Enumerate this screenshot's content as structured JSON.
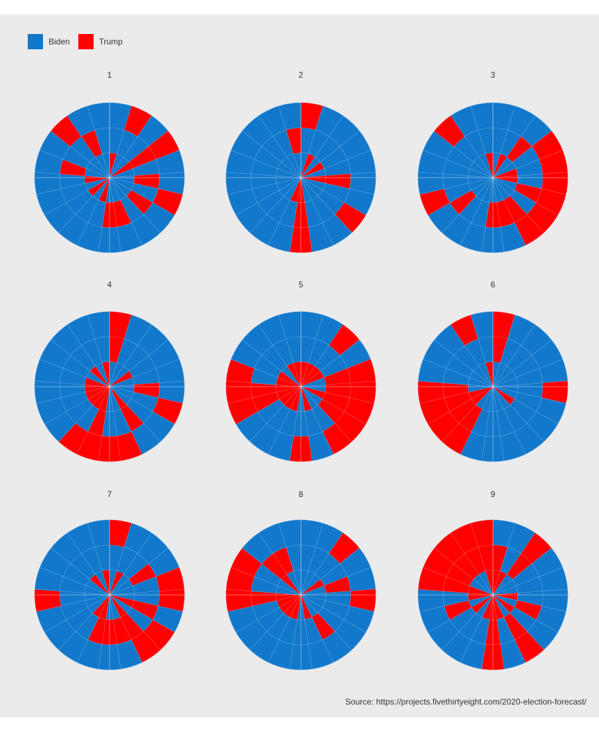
{
  "legend": {
    "items": [
      {
        "label": "Biden",
        "color": "#1178cb"
      },
      {
        "label": "Trump",
        "color": "#fe0000"
      }
    ]
  },
  "source": "Source: https://projects.fivethirtyeight.com/2020-election-forecast/",
  "chart_data": {
    "type": "polar-bar",
    "rings": 3,
    "sectors": 21,
    "grid": true,
    "legend_position": "top-left",
    "colors": {
      "Biden": "#1178cb",
      "Trump": "#fe0000"
    },
    "facets": [
      {
        "label": "1",
        "trump_cells": [
          [
            0,
            0
          ],
          [
            1,
            2
          ],
          [
            3,
            0
          ],
          [
            3,
            1
          ],
          [
            3,
            2
          ],
          [
            5,
            1
          ],
          [
            6,
            2
          ],
          [
            7,
            1
          ],
          [
            9,
            1
          ],
          [
            10,
            1
          ],
          [
            11,
            0
          ],
          [
            13,
            0
          ],
          [
            15,
            0
          ],
          [
            16,
            1
          ],
          [
            18,
            2
          ],
          [
            19,
            1
          ]
        ]
      },
      {
        "label": "2",
        "trump_cells": [
          [
            0,
            2
          ],
          [
            1,
            0
          ],
          [
            3,
            0
          ],
          [
            5,
            0
          ],
          [
            5,
            1
          ],
          [
            7,
            2
          ],
          [
            10,
            0
          ],
          [
            10,
            1
          ],
          [
            10,
            2
          ],
          [
            11,
            0
          ],
          [
            20,
            1
          ]
        ]
      },
      {
        "label": "3",
        "trump_cells": [
          [
            1,
            0
          ],
          [
            2,
            1
          ],
          [
            3,
            2
          ],
          [
            4,
            0
          ],
          [
            4,
            2
          ],
          [
            5,
            0
          ],
          [
            5,
            2
          ],
          [
            6,
            1
          ],
          [
            6,
            2
          ],
          [
            7,
            2
          ],
          [
            8,
            1
          ],
          [
            8,
            2
          ],
          [
            9,
            1
          ],
          [
            10,
            1
          ],
          [
            13,
            1
          ],
          [
            14,
            2
          ],
          [
            18,
            2
          ],
          [
            20,
            0
          ]
        ]
      },
      {
        "label": "4",
        "trump_cells": [
          [
            0,
            2
          ],
          [
            0,
            1
          ],
          [
            3,
            0
          ],
          [
            5,
            1
          ],
          [
            6,
            2
          ],
          [
            8,
            0
          ],
          [
            8,
            1
          ],
          [
            9,
            2
          ],
          [
            10,
            2
          ],
          [
            11,
            0
          ],
          [
            11,
            1
          ],
          [
            11,
            2
          ],
          [
            12,
            0
          ],
          [
            12,
            2
          ],
          [
            13,
            0
          ],
          [
            14,
            0
          ],
          [
            15,
            0
          ],
          [
            16,
            0
          ],
          [
            18,
            0
          ],
          [
            20,
            0
          ]
        ]
      },
      {
        "label": "5",
        "trump_cells": [
          [
            0,
            0
          ],
          [
            1,
            0
          ],
          [
            2,
            0
          ],
          [
            2,
            2
          ],
          [
            3,
            0
          ],
          [
            4,
            1
          ],
          [
            4,
            2
          ],
          [
            5,
            1
          ],
          [
            5,
            2
          ],
          [
            6,
            0
          ],
          [
            6,
            1
          ],
          [
            6,
            2
          ],
          [
            7,
            1
          ],
          [
            7,
            2
          ],
          [
            8,
            2
          ],
          [
            9,
            0
          ],
          [
            10,
            2
          ],
          [
            11,
            0
          ],
          [
            12,
            0
          ],
          [
            13,
            0
          ],
          [
            14,
            0
          ],
          [
            14,
            1
          ],
          [
            14,
            2
          ],
          [
            15,
            0
          ],
          [
            15,
            1
          ],
          [
            15,
            2
          ],
          [
            16,
            0
          ],
          [
            16,
            2
          ],
          [
            17,
            0
          ],
          [
            19,
            0
          ],
          [
            20,
            0
          ]
        ]
      },
      {
        "label": "6",
        "trump_cells": [
          [
            0,
            1
          ],
          [
            0,
            2
          ],
          [
            5,
            2
          ],
          [
            7,
            0
          ],
          [
            12,
            1
          ],
          [
            12,
            2
          ],
          [
            13,
            0
          ],
          [
            13,
            1
          ],
          [
            13,
            2
          ],
          [
            14,
            0
          ],
          [
            14,
            1
          ],
          [
            14,
            2
          ],
          [
            15,
            1
          ],
          [
            15,
            2
          ],
          [
            19,
            2
          ],
          [
            20,
            0
          ]
        ]
      },
      {
        "label": "7",
        "trump_cells": [
          [
            0,
            2
          ],
          [
            1,
            0
          ],
          [
            3,
            1
          ],
          [
            4,
            2
          ],
          [
            5,
            2
          ],
          [
            6,
            0
          ],
          [
            6,
            1
          ],
          [
            7,
            2
          ],
          [
            8,
            0
          ],
          [
            8,
            1
          ],
          [
            8,
            2
          ],
          [
            9,
            1
          ],
          [
            10,
            1
          ],
          [
            11,
            1
          ],
          [
            11,
            0
          ],
          [
            12,
            0
          ],
          [
            15,
            2
          ],
          [
            18,
            0
          ],
          [
            20,
            0
          ]
        ]
      },
      {
        "label": "8",
        "trump_cells": [
          [
            2,
            2
          ],
          [
            3,
            0
          ],
          [
            4,
            1
          ],
          [
            5,
            2
          ],
          [
            8,
            1
          ],
          [
            9,
            0
          ],
          [
            11,
            0
          ],
          [
            12,
            0
          ],
          [
            13,
            0
          ],
          [
            14,
            0
          ],
          [
            15,
            0
          ],
          [
            15,
            1
          ],
          [
            15,
            2
          ],
          [
            16,
            2
          ],
          [
            17,
            2
          ],
          [
            18,
            0
          ],
          [
            18,
            1
          ],
          [
            19,
            1
          ]
        ]
      },
      {
        "label": "9",
        "trump_cells": [
          [
            0,
            0
          ],
          [
            0,
            1
          ],
          [
            1,
            0
          ],
          [
            2,
            1
          ],
          [
            2,
            2
          ],
          [
            5,
            0
          ],
          [
            6,
            1
          ],
          [
            7,
            0
          ],
          [
            8,
            1
          ],
          [
            8,
            2
          ],
          [
            9,
            0
          ],
          [
            10,
            0
          ],
          [
            10,
            1
          ],
          [
            10,
            2
          ],
          [
            11,
            0
          ],
          [
            13,
            0
          ],
          [
            14,
            1
          ],
          [
            15,
            0
          ],
          [
            16,
            0
          ],
          [
            16,
            1
          ],
          [
            16,
            2
          ],
          [
            17,
            1
          ],
          [
            17,
            2
          ],
          [
            18,
            1
          ],
          [
            18,
            2
          ],
          [
            19,
            1
          ],
          [
            19,
            2
          ],
          [
            20,
            0
          ],
          [
            20,
            1
          ],
          [
            20,
            2
          ]
        ]
      }
    ]
  }
}
